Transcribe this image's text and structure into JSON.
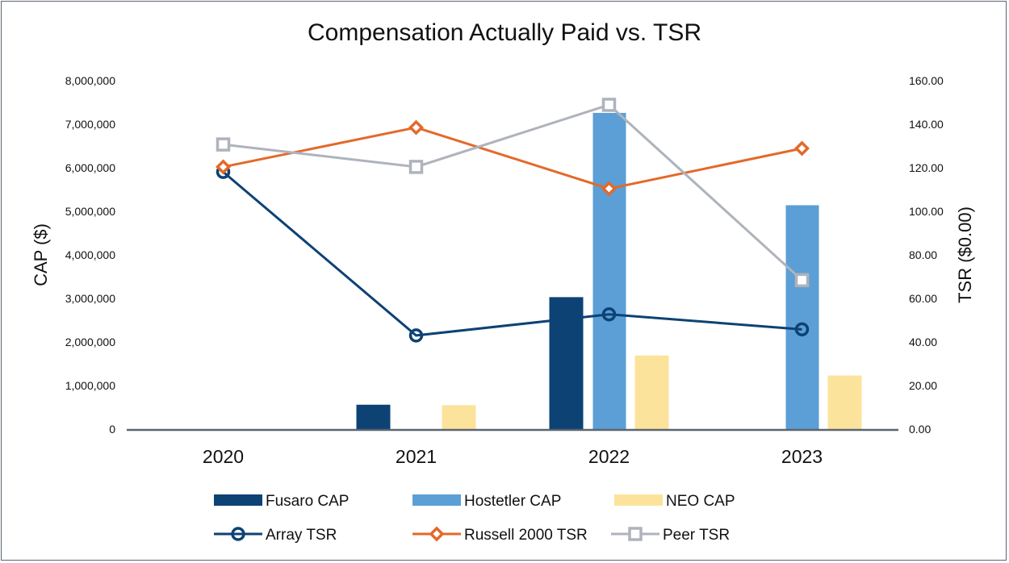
{
  "chart_data": {
    "type": "bar",
    "title": "Compensation Actually Paid vs. TSR",
    "categories": [
      "2020",
      "2021",
      "2022",
      "2023"
    ],
    "ylabel": "CAP ($)",
    "y2label": "TSR ($0.00)",
    "ylim": [
      0,
      8000000
    ],
    "y2lim": [
      0,
      160
    ],
    "yticks": [
      "0",
      "1,000,000",
      "2,000,000",
      "3,000,000",
      "4,000,000",
      "5,000,000",
      "6,000,000",
      "7,000,000",
      "8,000,000"
    ],
    "y2ticks": [
      "0.00",
      "20.00",
      "40.00",
      "60.00",
      "80.00",
      "100.00",
      "120.00",
      "140.00",
      "160.00"
    ],
    "grid": false,
    "legend_position": "bottom",
    "bar_series": [
      {
        "name": "Fusaro CAP",
        "color": "#0d4274",
        "values": [
          null,
          560000,
          3030000,
          null
        ]
      },
      {
        "name": "Hostetler CAP",
        "color": "#5b9fd6",
        "values": [
          null,
          null,
          7260000,
          5140000
        ]
      },
      {
        "name": "NEO CAP",
        "color": "#fce39b",
        "values": [
          null,
          550000,
          1690000,
          1230000
        ]
      }
    ],
    "line_series": [
      {
        "name": "Array TSR",
        "color": "#0d4274",
        "marker": "circle",
        "values": [
          118.1,
          43.0,
          52.7,
          45.8
        ]
      },
      {
        "name": "Russell 2000 TSR",
        "color": "#e3692a",
        "marker": "diamond",
        "values": [
          120.4,
          138.5,
          110.4,
          128.9
        ]
      },
      {
        "name": "Peer TSR",
        "color": "#aeb3bc",
        "marker": "square",
        "values": [
          130.7,
          120.4,
          148.9,
          68.4
        ]
      }
    ]
  }
}
